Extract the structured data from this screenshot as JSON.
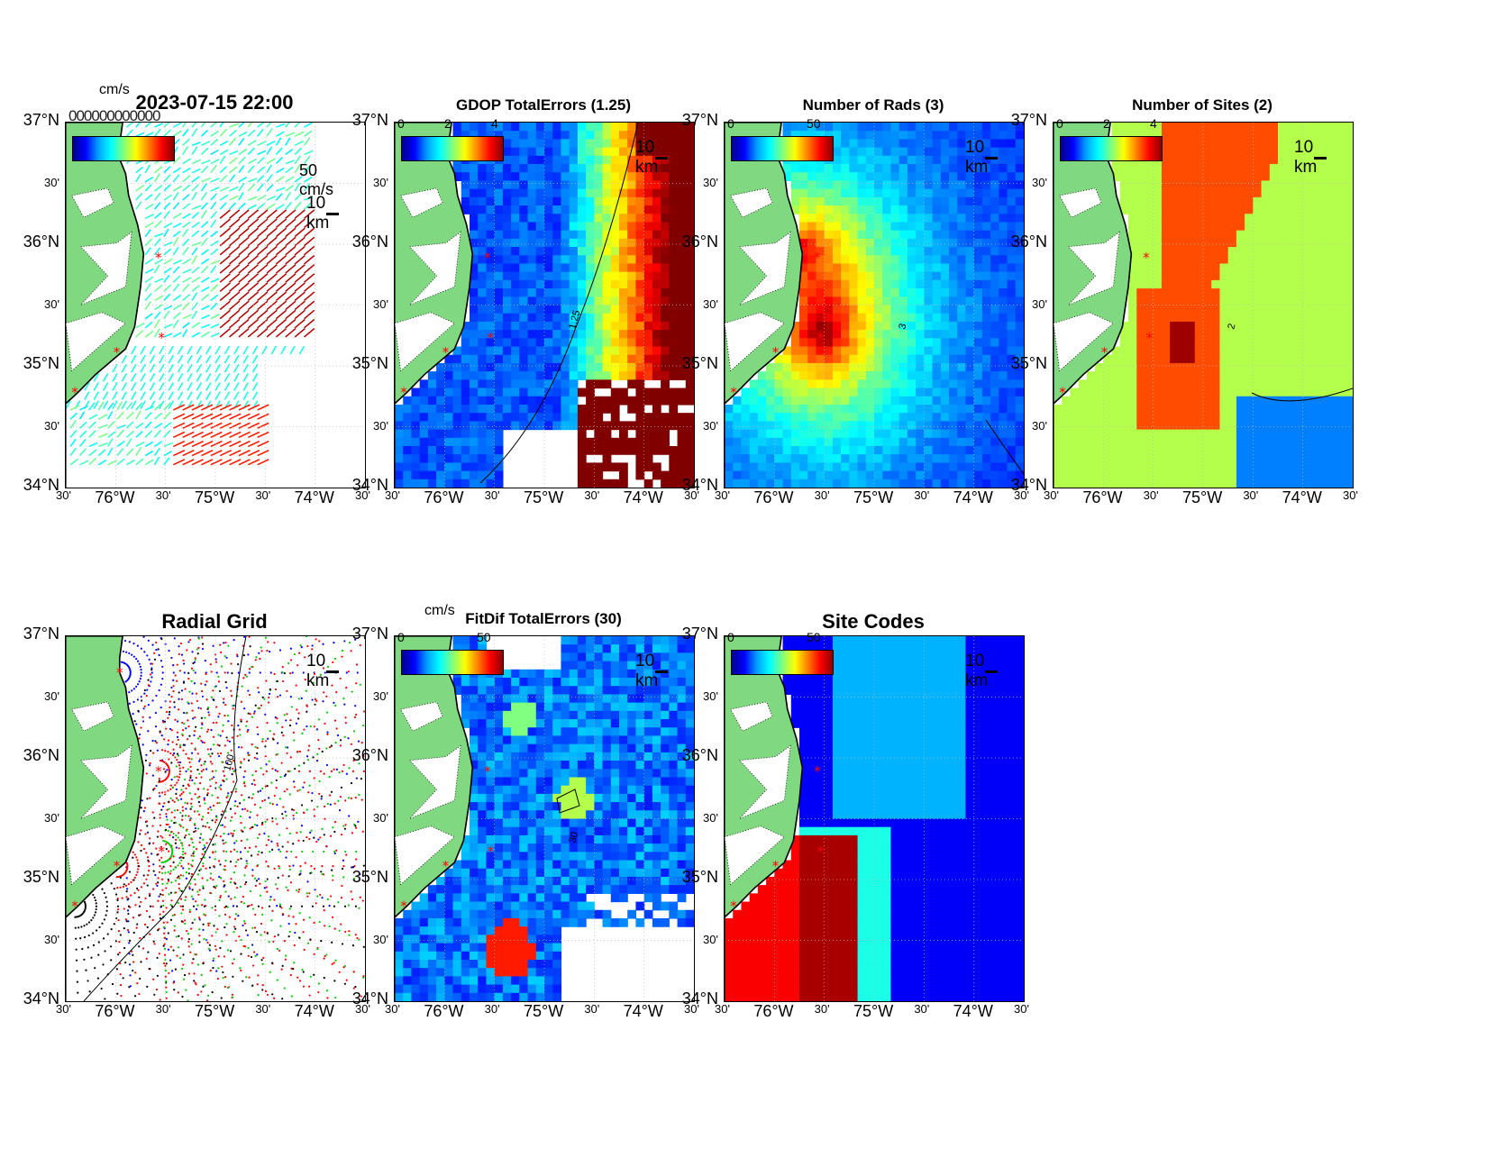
{
  "figure": {
    "timestamp": "2023-07-15 22:00"
  },
  "axes": {
    "lat_major": [
      "37°N",
      "36°N",
      "35°N",
      "34°N"
    ],
    "lat_minor": "30'",
    "lon_major": [
      "76°W",
      "75°W",
      "74°W"
    ],
    "lon_minor": "30'"
  },
  "panels": [
    {
      "id": "currents",
      "title": "2023-07-15 22:00",
      "cbar_unit": "cm/s",
      "cbar_ticks": [],
      "scale_label": "10 km",
      "vector_label": "50 cm/s",
      "overstrike": "000000000000"
    },
    {
      "id": "gdop",
      "title": "GDOP TotalErrors (1.25)",
      "cbar_unit": "",
      "cbar_ticks": [
        "0",
        "2",
        "4"
      ],
      "scale_label": "10 km"
    },
    {
      "id": "nrads",
      "title": "Number of Rads (3)",
      "cbar_unit": "",
      "cbar_ticks": [
        "0",
        "50"
      ],
      "scale_label": "10 km"
    },
    {
      "id": "nsites",
      "title": "Number of Sites (2)",
      "cbar_unit": "",
      "cbar_ticks": [
        "0",
        "2",
        "4"
      ],
      "scale_label": "10 km"
    },
    {
      "id": "radialgrid",
      "title": "Radial Grid",
      "cbar_unit": "",
      "cbar_ticks": [],
      "scale_label": "10 km"
    },
    {
      "id": "fitdif",
      "title": "FitDif TotalErrors (30)",
      "cbar_unit": "cm/s",
      "cbar_ticks": [
        "0",
        "50"
      ],
      "scale_label": "10 km"
    },
    {
      "id": "sitecodes",
      "title": "Site Codes",
      "cbar_unit": "",
      "cbar_ticks": [
        "0",
        "50"
      ],
      "scale_label": "10 km"
    }
  ],
  "contour_labels": {
    "gdop": "1.25",
    "nrads": "3",
    "nsites": "2",
    "radialgrid": "100",
    "fitdif": "30"
  },
  "chart_data": [
    {
      "type": "heatmap",
      "title": "GDOP TotalErrors (1.25)",
      "xlim": [
        -76.5,
        -73.5
      ],
      "ylim": [
        34,
        37
      ],
      "clim": [
        0,
        4
      ],
      "colorbar_ticks": [
        0,
        2,
        4
      ],
      "contour_level": 1.25
    },
    {
      "type": "heatmap",
      "title": "Number of Rads (3)",
      "xlim": [
        -76.5,
        -73.5
      ],
      "ylim": [
        34,
        37
      ],
      "clim": [
        0,
        50
      ],
      "colorbar_ticks": [
        0,
        50
      ],
      "contour_level": 3
    },
    {
      "type": "heatmap",
      "title": "Number of Sites (2)",
      "xlim": [
        -76.5,
        -73.5
      ],
      "ylim": [
        34,
        37
      ],
      "clim": [
        0,
        4
      ],
      "colorbar_ticks": [
        0,
        2,
        4
      ],
      "contour_level": 2
    },
    {
      "type": "heatmap",
      "title": "FitDif TotalErrors (30)",
      "xlim": [
        -76.5,
        -73.5
      ],
      "ylim": [
        34,
        37
      ],
      "clim": [
        0,
        50
      ],
      "colorbar_ticks": [
        0,
        50
      ],
      "contour_level": 30,
      "unit": "cm/s"
    },
    {
      "type": "heatmap",
      "title": "Site Codes",
      "xlim": [
        -76.5,
        -73.5
      ],
      "ylim": [
        34,
        37
      ],
      "clim": [
        0,
        50
      ],
      "colorbar_ticks": [
        0,
        50
      ]
    },
    {
      "type": "scatter",
      "title": "Radial Grid",
      "xlim": [
        -76.5,
        -73.5
      ],
      "ylim": [
        34,
        37
      ],
      "contour_level": 100
    },
    {
      "type": "scatter",
      "title": "2023-07-15 22:00",
      "xlim": [
        -76.5,
        -73.5
      ],
      "ylim": [
        34,
        37
      ],
      "unit": "cm/s",
      "reference_vector": "50 cm/s"
    }
  ],
  "colors": {
    "land": "#80d880",
    "site_marker": "#ff0000"
  }
}
